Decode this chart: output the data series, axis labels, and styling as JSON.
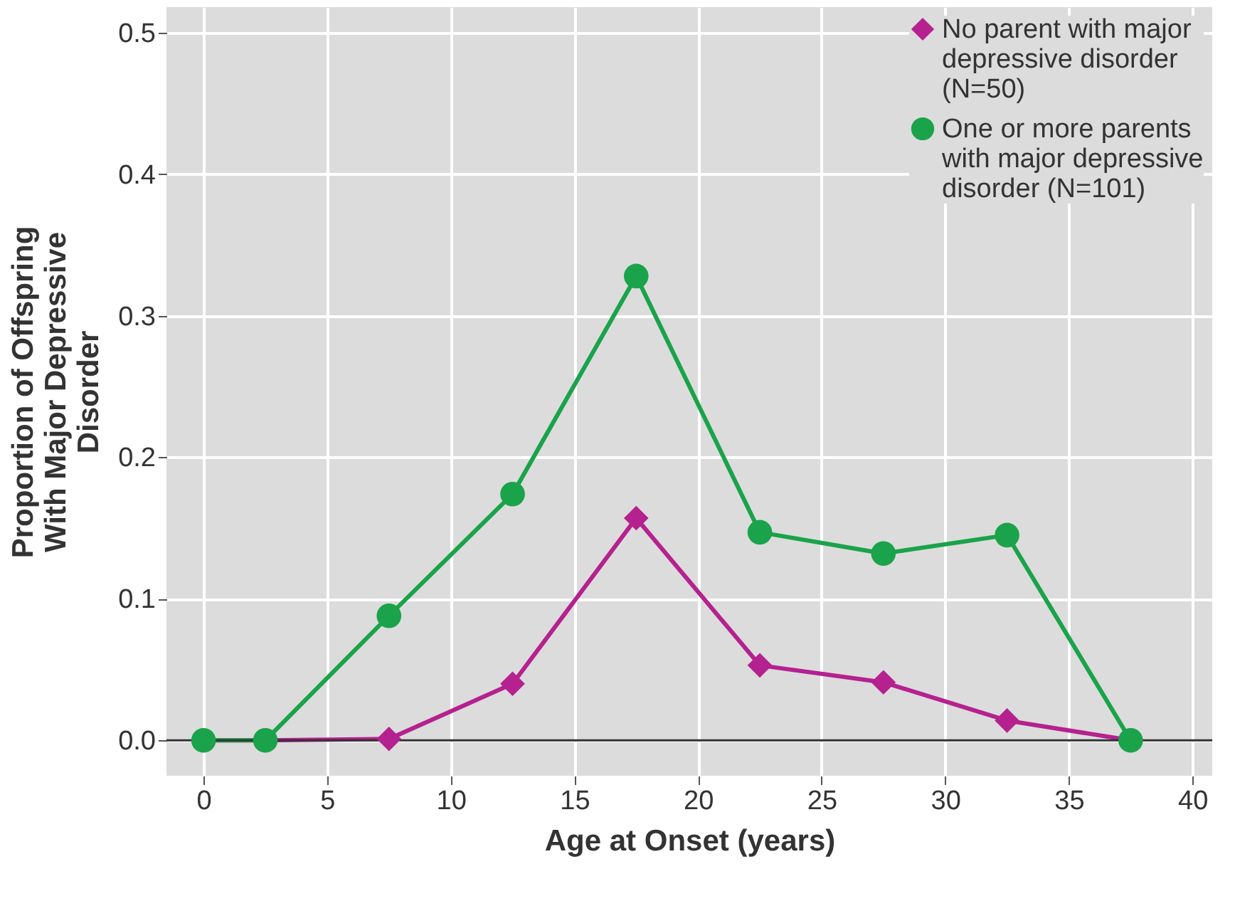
{
  "chart_data": {
    "type": "line",
    "xlabel": "Age at Onset (years)",
    "ylabel": "Proportion of Offspring With Major Depressive Disorder",
    "x": [
      0,
      2.5,
      7.5,
      12.5,
      17.5,
      22.5,
      27.5,
      32.5,
      37.5
    ],
    "series": [
      {
        "name": "No parent with major depressive disorder (N=50)",
        "color": "#b5218f",
        "marker": "diamond",
        "values": [
          0,
          0,
          0.001,
          0.04,
          0.157,
          0.053,
          0.041,
          0.014,
          0
        ]
      },
      {
        "name": "One or more parents with major depressive disorder (N=101)",
        "color": "#1aa34a",
        "marker": "circle",
        "values": [
          0,
          0,
          0.088,
          0.174,
          0.328,
          0.147,
          0.132,
          0.145,
          0
        ]
      }
    ],
    "xlim": [
      -1.5,
      40.8
    ],
    "xticks": [
      0,
      5,
      10,
      15,
      20,
      25,
      30,
      35,
      40
    ],
    "ylim": [
      -0.025,
      0.518
    ],
    "yticks": [
      {
        "value": 0,
        "label": "0.0"
      },
      0.1,
      0.2,
      0.3,
      0.4,
      0.5
    ],
    "ref_lines": [
      {
        "axis": "y",
        "value": 0,
        "color": "#333333"
      }
    ],
    "grid": true,
    "legend": "top right",
    "line_style": "solid"
  }
}
